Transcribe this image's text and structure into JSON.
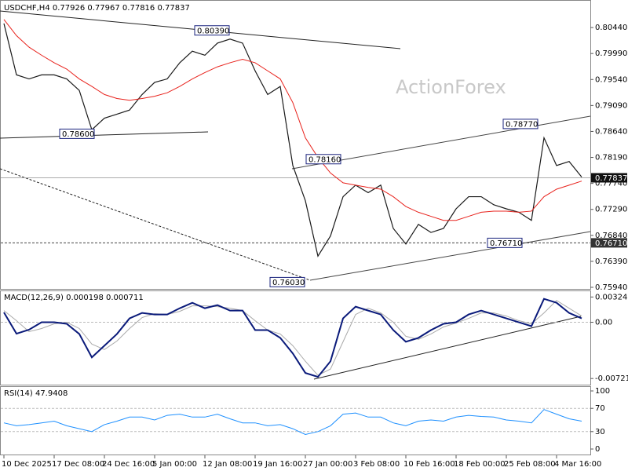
{
  "chart_data": {
    "type": "line",
    "title": "USDCHF,H4  0.77926 0.77967 0.77816 0.77837",
    "watermark": "ActionForex",
    "categories": [
      "10 Dec 2025",
      null,
      null,
      null,
      "17 Dec 08:00",
      null,
      null,
      null,
      "24 Dec 16:00",
      null,
      null,
      null,
      "5 Jan 00:00",
      null,
      null,
      null,
      "12 Jan 08:00",
      null,
      null,
      null,
      "19 Jan 16:00",
      null,
      null,
      null,
      "27 Jan 00:00",
      null,
      null,
      null,
      "3 Feb 08:00",
      null,
      null,
      null,
      "10 Feb 16:00",
      null,
      null,
      null,
      "18 Feb 00:00",
      null,
      null,
      null,
      "25 Feb 08:00",
      null,
      null,
      null,
      "4 Mar 16:00",
      null,
      null
    ],
    "series": [
      {
        "name": "USDCHF",
        "color": "#1a1a1a",
        "values": [
          0.8051,
          0.7962,
          0.7955,
          0.7962,
          0.7962,
          0.7955,
          0.7935,
          0.7867,
          0.7887,
          0.7894,
          0.7901,
          0.7928,
          0.7949,
          0.7955,
          0.7983,
          0.8003,
          0.7996,
          0.8017,
          0.8024,
          0.8017,
          0.7969,
          0.7928,
          0.7942,
          0.7805,
          0.7744,
          0.7648,
          0.7683,
          0.7751,
          0.7771,
          0.7758,
          0.7771,
          0.7696,
          0.7669,
          0.7703,
          0.7689,
          0.7696,
          0.773,
          0.7751,
          0.7751,
          0.7737,
          0.773,
          0.7724,
          0.771,
          0.7853,
          0.7805,
          0.7812,
          0.7785
        ]
      },
      {
        "name": "MA",
        "color": "#e8221c",
        "values": [
          0.8058,
          0.803,
          0.801,
          0.7996,
          0.7983,
          0.7972,
          0.7955,
          0.7942,
          0.7928,
          0.7921,
          0.7918,
          0.7921,
          0.7925,
          0.7931,
          0.7942,
          0.7955,
          0.7966,
          0.7976,
          0.7983,
          0.7989,
          0.7983,
          0.7969,
          0.7955,
          0.7914,
          0.7853,
          0.7819,
          0.7792,
          0.7775,
          0.7771,
          0.7767,
          0.7764,
          0.7751,
          0.7734,
          0.7724,
          0.7717,
          0.771,
          0.771,
          0.7717,
          0.7724,
          0.7726,
          0.7726,
          0.7724,
          0.7726,
          0.7751,
          0.7764,
          0.7771,
          0.7778
        ]
      }
    ],
    "ylim": [
      0.75913,
      0.80917
    ],
    "yticks": [
      {
        "value": 0.8044,
        "label": "0.80440"
      },
      {
        "value": 0.7999,
        "label": "0.79990"
      },
      {
        "value": 0.7954,
        "label": "0.79540"
      },
      {
        "value": 0.7909,
        "label": "0.79090"
      },
      {
        "value": 0.7864,
        "label": "0.78640"
      },
      {
        "value": 0.7819,
        "label": "0.78190"
      },
      {
        "value": 0.7774,
        "label": "0.77740"
      },
      {
        "value": 0.7729,
        "label": "0.77290"
      },
      {
        "value": 0.7684,
        "label": "0.76840"
      },
      {
        "value": 0.7639,
        "label": "0.76390"
      },
      {
        "value": 0.7594,
        "label": "0.75940"
      }
    ],
    "annotations": [
      {
        "value": 0.8039,
        "label": "0.80390"
      },
      {
        "value": 0.786,
        "label": "0.78600"
      },
      {
        "value": 0.7816,
        "label": "0.78160"
      },
      {
        "value": 0.7877,
        "label": "0.78770"
      },
      {
        "value": 0.7671,
        "label": "0.76710"
      },
      {
        "value": 0.7603,
        "label": "0.76030"
      }
    ],
    "price_markers": [
      {
        "value": 0.77837,
        "label": "0.77837"
      },
      {
        "value": 0.7671,
        "label": "0.76710"
      }
    ],
    "macd": {
      "title": "MACD(12,26,9) 0.000198 0.000711",
      "ylim": [
        -0.008,
        0.00408
      ],
      "yticks": [
        0.00324,
        {
          "value": 0,
          "label": "0.00"
        },
        -0.007214
      ],
      "series": [
        {
          "name": "MACD",
          "color": "#0a1a7a",
          "values": [
            0.00126,
            -0.00146,
            -0.00095,
            0,
            0,
            -0.0002,
            -0.0015,
            -0.0045,
            -0.003,
            -0.0015,
            0.0005,
            0.0012,
            0.001,
            0.001,
            0.0018,
            0.0025,
            0.0018,
            0.0022,
            0.0015,
            0.0015,
            -0.001,
            -0.001,
            -0.002,
            -0.004,
            -0.0065,
            -0.007,
            -0.005,
            0.0005,
            0.002,
            0.0015,
            0.001,
            -0.001,
            -0.0025,
            -0.002,
            -0.001,
            -0.0002,
            0,
            0.001,
            0.0015,
            0.001,
            0.0005,
            0,
            -0.0005,
            0.003,
            0.0025,
            0.0012,
            0.0005
          ]
        },
        {
          "name": "Signal",
          "color": "#aaaaaa",
          "values": [
            0.0015,
            0.0002,
            -0.0012,
            -0.0008,
            -0.0002,
            0,
            -0.0008,
            -0.0028,
            -0.0035,
            -0.0024,
            -0.0008,
            0.0006,
            0.0011,
            0.001,
            0.0014,
            0.0021,
            0.0021,
            0.002,
            0.0018,
            0.0015,
            0.0002,
            -0.001,
            -0.0015,
            -0.003,
            -0.005,
            -0.0068,
            -0.006,
            -0.0025,
            0.001,
            0.0018,
            0.0012,
            0,
            -0.0018,
            -0.0022,
            -0.0015,
            -0.0006,
            -0.0001,
            0.0005,
            0.0012,
            0.0012,
            0.0008,
            0.0002,
            -0.0002,
            0.0012,
            0.0028,
            0.0018,
            0.0008
          ]
        }
      ]
    },
    "rsi": {
      "title": "RSI(14) 47.9408",
      "color": "#1e90ff",
      "ylim": [
        0,
        100
      ],
      "yticks": [
        100,
        70,
        30,
        0
      ],
      "levels": [
        70,
        30
      ],
      "values": [
        45,
        40,
        42,
        45,
        48,
        40,
        35,
        30,
        42,
        48,
        55,
        55,
        50,
        58,
        60,
        55,
        55,
        60,
        52,
        45,
        45,
        40,
        42,
        35,
        25,
        30,
        40,
        60,
        62,
        55,
        55,
        45,
        40,
        48,
        50,
        48,
        55,
        58,
        56,
        55,
        50,
        48,
        45,
        68,
        60,
        52,
        48
      ]
    }
  }
}
